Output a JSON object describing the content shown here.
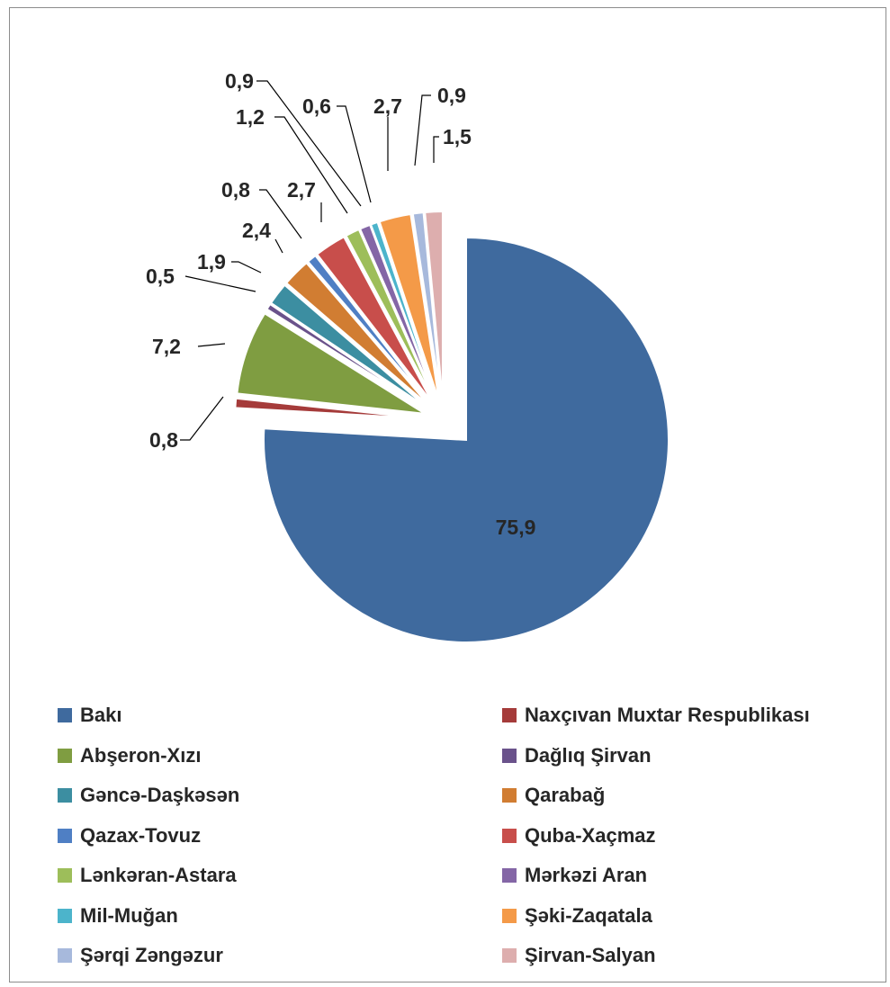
{
  "chart_data": {
    "type": "pie",
    "title": "",
    "legend_position": "bottom",
    "slices": [
      {
        "name": "Bakı",
        "value": 75.9,
        "label": "75,9",
        "color": "#3F6A9E"
      },
      {
        "name": "Naxçıvan Muxtar Respublikası",
        "value": 0.8,
        "label": "0,8",
        "color": "#A53B3A"
      },
      {
        "name": "Abşeron-Xızı",
        "value": 7.2,
        "label": "7,2",
        "color": "#7F9D41"
      },
      {
        "name": "Dağlıq Şirvan",
        "value": 0.5,
        "label": "0,5",
        "color": "#6A528B"
      },
      {
        "name": "Gəncə-Daşkəsən",
        "value": 1.9,
        "label": "1,9",
        "color": "#3C8EA1"
      },
      {
        "name": "Qarabağ",
        "value": 2.4,
        "label": "2,4",
        "color": "#D17D32"
      },
      {
        "name": "Qazax-Tovuz",
        "value": 0.8,
        "label": "0,8",
        "color": "#4F7FC4"
      },
      {
        "name": "Quba-Xaçmaz",
        "value": 2.7,
        "label": "2,7",
        "color": "#C84E4B"
      },
      {
        "name": "Lənkəran-Astara",
        "value": 1.2,
        "label": "1,2",
        "color": "#9DBE5A"
      },
      {
        "name": "Mərkəzi Aran",
        "value": 0.9,
        "label": "0,9",
        "color": "#8466A6"
      },
      {
        "name": "Mil-Muğan",
        "value": 0.6,
        "label": "0,6",
        "color": "#4CB4CB"
      },
      {
        "name": "Şəki-Zaqatala",
        "value": 2.7,
        "label": "2,7",
        "color": "#F49A48"
      },
      {
        "name": "Şərqi Zəngəzur",
        "value": 0.9,
        "label": "0,9",
        "color": "#A7B9DC"
      },
      {
        "name": "Şirvan-Salyan",
        "value": 1.5,
        "label": "1,5",
        "color": "#DDAEAE"
      }
    ]
  },
  "legend": {
    "items": [
      {
        "label": "Bakı",
        "color": "#3F6A9E"
      },
      {
        "label": "Naxçıvan Muxtar Respublikası",
        "color": "#A53B3A"
      },
      {
        "label": "Abşeron-Xızı",
        "color": "#7F9D41"
      },
      {
        "label": "Dağlıq Şirvan",
        "color": "#6A528B"
      },
      {
        "label": "Gəncə-Daşkəsən",
        "color": "#3C8EA1"
      },
      {
        "label": "Qarabağ",
        "color": "#D17D32"
      },
      {
        "label": "Qazax-Tovuz",
        "color": "#4F7FC4"
      },
      {
        "label": "Quba-Xaçmaz",
        "color": "#C84E4B"
      },
      {
        "label": "Lənkəran-Astara",
        "color": "#9DBE5A"
      },
      {
        "label": "Mərkəzi Aran",
        "color": "#8466A6"
      },
      {
        "label": "Mil-Muğan",
        "color": "#4CB4CB"
      },
      {
        "label": "Şəki-Zaqatala",
        "color": "#F49A48"
      },
      {
        "label": "Şərqi Zəngəzur",
        "color": "#A7B9DC"
      },
      {
        "label": "Şirvan-Salyan",
        "color": "#DDAEAE"
      }
    ]
  }
}
